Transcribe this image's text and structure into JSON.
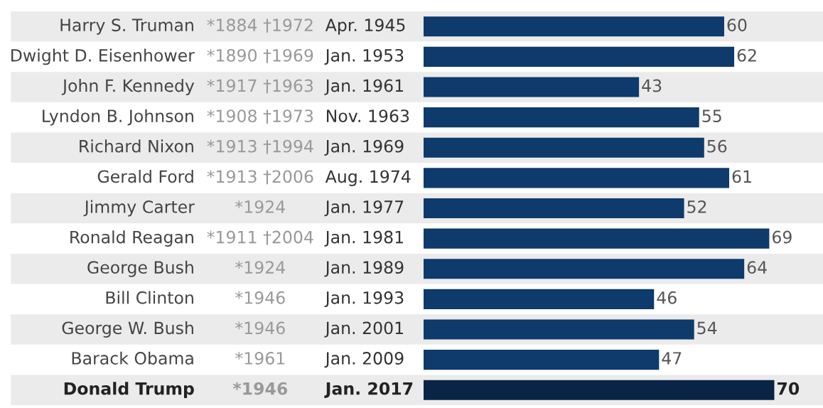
{
  "chart_data": {
    "type": "bar",
    "orientation": "horizontal",
    "data_labels": true,
    "categories": [
      "Harry S. Truman",
      "Dwight D. Eisenhower",
      "John F. Kennedy",
      "Lyndon B. Johnson",
      "Richard Nixon",
      "Gerald Ford",
      "Jimmy Carter",
      "Ronald Reagan",
      "George Bush",
      "Bill Clinton",
      "George W. Bush",
      "Barack Obama",
      "Donald Trump"
    ],
    "values": [
      60,
      62,
      43,
      55,
      56,
      61,
      52,
      69,
      64,
      46,
      54,
      47,
      70
    ],
    "colors": [
      "#0e3a6c",
      "#0e3a6c",
      "#0e3a6c",
      "#0e3a6c",
      "#0e3a6c",
      "#0e3a6c",
      "#0e3a6c",
      "#0e3a6c",
      "#0e3a6c",
      "#0e3a6c",
      "#0e3a6c",
      "#0e3a6c",
      "#0a2446"
    ],
    "annotations": [
      "*1884 †1972",
      "Apr. 1945",
      "*1890 †1969",
      "Jan. 1953",
      "*1917 †1963",
      "Jan. 1961",
      "*1908 †1973",
      "Nov. 1963",
      "*1913 †1994",
      "Jan. 1969",
      "*1913 †2006",
      "Aug. 1974",
      "*1924",
      "Jan. 1977",
      "*1911 †2004",
      "Jan. 1981",
      "*1924",
      "Jan. 1989",
      "*1946",
      "Jan. 1993",
      "*1946",
      "Jan. 2001",
      "*1961",
      "Jan. 2009",
      "*1946",
      "Jan. 2017"
    ]
  }
}
